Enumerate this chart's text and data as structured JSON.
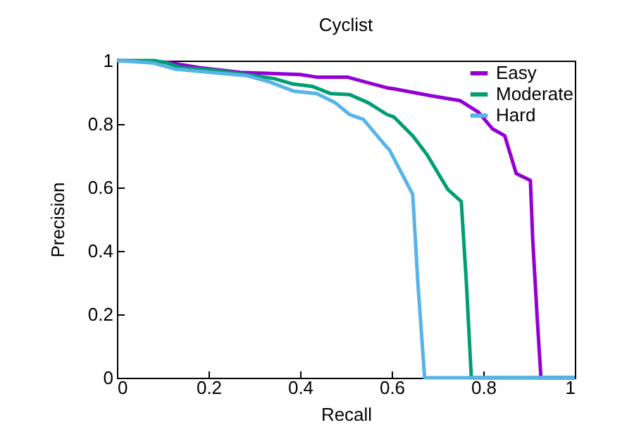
{
  "chart_data": {
    "type": "line",
    "title": "Cyclist",
    "xlabel": "Recall",
    "ylabel": "Precision",
    "xlim": [
      0,
      1
    ],
    "ylim": [
      0,
      1
    ],
    "xticks": [
      0,
      0.2,
      0.4,
      0.6,
      0.8,
      1
    ],
    "yticks": [
      0,
      0.2,
      0.4,
      0.6,
      0.8,
      1
    ],
    "grid": false,
    "legend": "top right",
    "marker": "none",
    "line_style": "solid",
    "series": [
      {
        "name": "Easy",
        "color": "#9400d3",
        "x": [
          0,
          0.107,
          0.18,
          0.27,
          0.4,
          0.436,
          0.503,
          0.59,
          0.605,
          0.687,
          0.749,
          0.79,
          0.82,
          0.847,
          0.872,
          0.903,
          0.908,
          0.918,
          0.926,
          1
        ],
        "values": [
          1,
          0.995,
          0.978,
          0.963,
          0.956,
          0.948,
          0.948,
          0.914,
          0.911,
          0.889,
          0.874,
          0.837,
          0.785,
          0.763,
          0.644,
          0.622,
          0.437,
          0.185,
          0,
          0
        ]
      },
      {
        "name": "Moderate",
        "color": "#009e73",
        "x": [
          0,
          0.082,
          0.108,
          0.139,
          0.21,
          0.282,
          0.344,
          0.385,
          0.426,
          0.467,
          0.508,
          0.549,
          0.59,
          0.605,
          0.646,
          0.677,
          0.723,
          0.752,
          0.763,
          0.774,
          1
        ],
        "values": [
          1,
          1,
          0.993,
          0.978,
          0.97,
          0.956,
          0.943,
          0.926,
          0.919,
          0.896,
          0.893,
          0.867,
          0.83,
          0.822,
          0.763,
          0.704,
          0.593,
          0.556,
          0.304,
          0,
          0
        ]
      },
      {
        "name": "Hard",
        "color": "#56b4e9",
        "x": [
          0,
          0.077,
          0.128,
          0.18,
          0.282,
          0.333,
          0.385,
          0.436,
          0.477,
          0.508,
          0.538,
          0.59,
          0.595,
          0.646,
          0.657,
          0.672,
          1
        ],
        "values": [
          1,
          0.993,
          0.973,
          0.966,
          0.953,
          0.933,
          0.904,
          0.896,
          0.867,
          0.83,
          0.815,
          0.726,
          0.719,
          0.578,
          0.304,
          0,
          0
        ]
      }
    ]
  }
}
